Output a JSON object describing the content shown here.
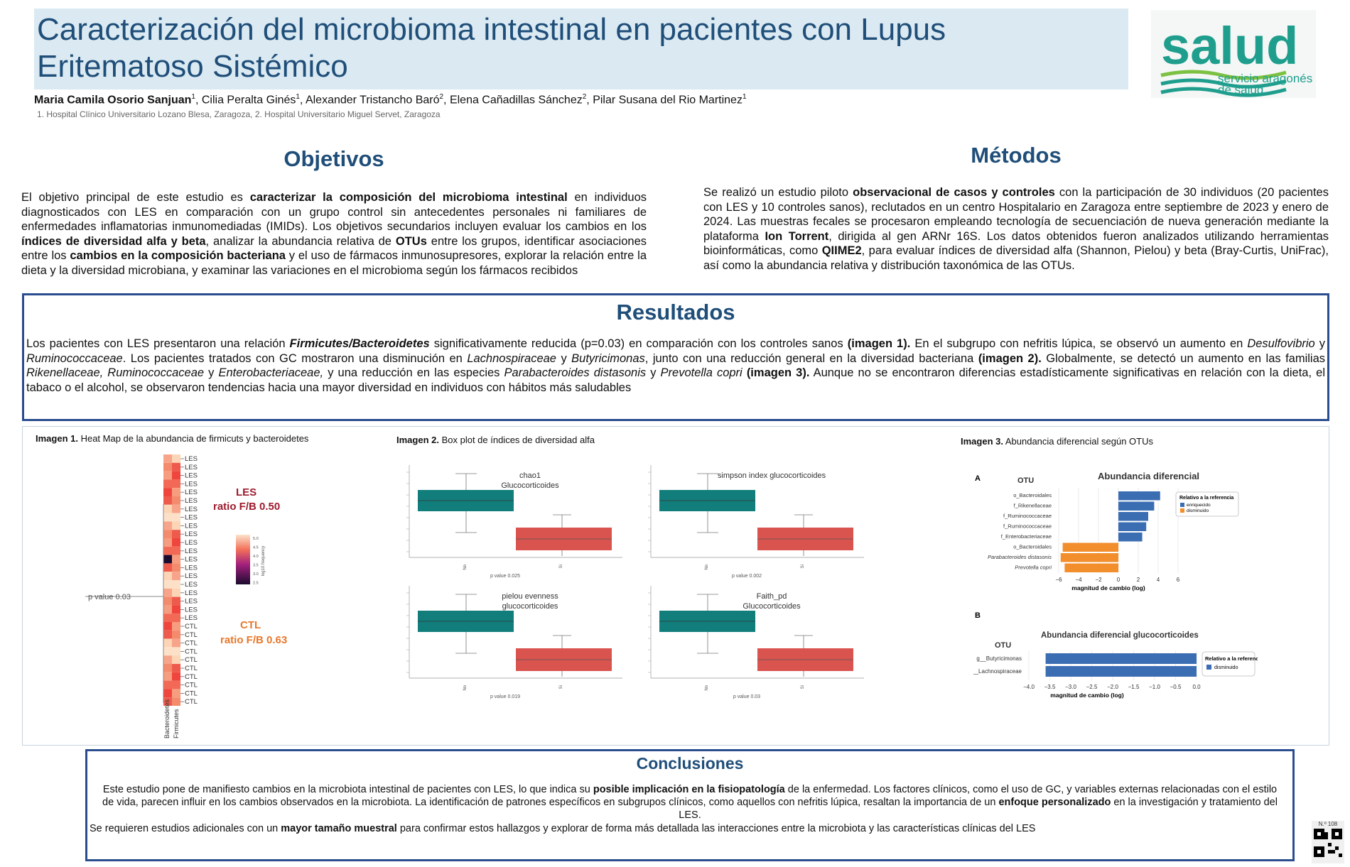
{
  "header": {
    "title_line1": "Caracterización del microbioma intestinal en pacientes con Lupus",
    "title_line2": "Eritematoso Sistémico",
    "authors_html_parts": [
      {
        "name": "Maria Camila Osorio Sanjuan",
        "sup": "1",
        "bold": true
      },
      {
        "name": "Cilia Peralta Ginés",
        "sup": "1"
      },
      {
        "name": "Alexander Tristancho Baró",
        "sup": "2"
      },
      {
        "name": "Elena Cañadillas Sánchez",
        "sup": "2"
      },
      {
        "name": "Pilar Susana del Rio Martinez",
        "sup": "1"
      }
    ],
    "affiliations": "1. Hospital Clínico Universitario Lozano Blesa, Zaragoza, 2. Hospital Universitario Miguel Servet, Zaragoza"
  },
  "logo": {
    "word": "salud",
    "line1": "servicio aragonés",
    "line2": "de salud",
    "colors": {
      "teal": "#1f9e8e",
      "green": "#7cc142"
    }
  },
  "objetivos": {
    "heading": "Objetivos",
    "text_parts": [
      {
        "t": "El objetivo principal de este estudio es "
      },
      {
        "t": "caracterizar la composición del microbioma intestinal",
        "b": true
      },
      {
        "t": " en individuos diagnosticados con LES en comparación con un grupo control sin antecedentes personales ni familiares de enfermedades inflamatorias inmunomediadas (IMIDs). Los objetivos secundarios incluyen evaluar los cambios en los "
      },
      {
        "t": "índices de diversidad alfa y beta",
        "b": true
      },
      {
        "t": ", analizar la abundancia relativa de "
      },
      {
        "t": "OTUs",
        "b": true
      },
      {
        "t": " entre los grupos, identificar asociaciones entre los "
      },
      {
        "t": "cambios en la composición bacteriana",
        "b": true
      },
      {
        "t": " y el uso de fármacos inmunosupresores, explorar la relación entre la dieta y la diversidad microbiana, y examinar las variaciones en el microbioma según los fármacos recibidos"
      }
    ]
  },
  "metodos": {
    "heading": "Métodos",
    "text_parts": [
      {
        "t": "Se realizó un estudio piloto "
      },
      {
        "t": "observacional de casos y controles",
        "b": true
      },
      {
        "t": " con la participación de 30 individuos (20 pacientes con LES y 10 controles sanos), reclutados en un centro Hospitalario en Zaragoza entre septiembre de 2023 y enero de 2024. Las muestras fecales se procesaron empleando tecnología de secuenciación de nueva generación mediante la plataforma "
      },
      {
        "t": "Ion Torrent",
        "b": true
      },
      {
        "t": ", dirigida al gen ARNr 16S. Los datos obtenidos fueron analizados utilizando herramientas bioinformáticas, como "
      },
      {
        "t": "QIIME2",
        "b": true
      },
      {
        "t": ", para evaluar índices de diversidad alfa (Shannon, Pielou) y beta (Bray-Curtis, UniFrac), así como la abundancia relativa y distribución taxonómica de las OTUs."
      }
    ]
  },
  "resultados": {
    "heading": "Resultados",
    "text_parts": [
      {
        "t": "Los pacientes con LES presentaron una relación "
      },
      {
        "t": "Firmicutes/Bacteroidetes",
        "b": true,
        "i": true
      },
      {
        "t": " significativamente reducida (p=0.03) en comparación con los controles sanos "
      },
      {
        "t": "(imagen 1).",
        "b": true
      },
      {
        "t": " En el subgrupo con nefritis lúpica, se observó un aumento en "
      },
      {
        "t": "Desulfovibrio",
        "i": true
      },
      {
        "t": " y "
      },
      {
        "t": "Ruminococcaceae",
        "i": true
      },
      {
        "t": ". Los pacientes tratados con GC mostraron una disminución en "
      },
      {
        "t": "Lachnospiraceae",
        "i": true
      },
      {
        "t": " y "
      },
      {
        "t": "Butyricimonas",
        "i": true
      },
      {
        "t": ", junto con una reducción general en la diversidad bacteriana "
      },
      {
        "t": "(imagen 2).",
        "b": true
      },
      {
        "t": " Globalmente, se detectó un aumento en las familias "
      },
      {
        "t": "Rikenellaceae, Ruminococcaceae",
        "i": true
      },
      {
        "t": " y "
      },
      {
        "t": "Enterobacteriaceae,",
        "i": true
      },
      {
        "t": " y una reducción en las especies "
      },
      {
        "t": "Parabacteroides distasonis",
        "i": true
      },
      {
        "t": " y "
      },
      {
        "t": "Prevotella copri",
        "i": true
      },
      {
        "t": " "
      },
      {
        "t": "(imagen 3).",
        "b": true
      },
      {
        "t": " Aunque no se encontraron diferencias estadísticamente significativas en relación con la dieta, el tabaco o el alcohol, se observaron tendencias hacia una mayor diversidad en individuos con hábitos más saludables"
      }
    ]
  },
  "imagen1": {
    "caption_bold": "Imagen 1.",
    "caption": " Heat Map de la abundancia de firmicuts y bacteroidetes",
    "row_labels": [
      "LES",
      "LES",
      "LES",
      "LES",
      "LES",
      "LES",
      "LES",
      "LES",
      "LES",
      "LES",
      "LES",
      "LES",
      "LES",
      "LES",
      "LES",
      "LES",
      "LES",
      "LES",
      "LES",
      "LES",
      "CTL",
      "CTL",
      "CTL",
      "CTL",
      "CTL",
      "CTL",
      "CTL",
      "CTL",
      "CTL",
      "CTL"
    ],
    "col_labels": [
      "Bacteroidetes",
      "Firmicutes"
    ],
    "les_label": "LES",
    "les_ratio": "ratio F/B 0.50",
    "ctl_label": "CTL",
    "ctl_ratio": "ratio F/B 0.63",
    "pvalue": "p value 0.03",
    "colorbar_label": "log10 frequency",
    "colorbar_ticks": [
      "5.0",
      "4.5",
      "4.0",
      "3.5",
      "3.0",
      "2.5"
    ],
    "colors": {
      "les": "#9d1b2e",
      "ctl": "#e8782b"
    }
  },
  "imagen2": {
    "caption_bold": "Imagen 2.",
    "caption": " Box plot de índices de diversidad alfa",
    "plots": [
      {
        "title1": "chao1",
        "title2": "Glucocorticoides",
        "pvalue": "p value 0.025",
        "xlabels": [
          "No",
          "Si"
        ]
      },
      {
        "title1": "simpson index glucocorticoides",
        "title2": "",
        "pvalue": "p value 0.002",
        "xlabels": [
          "No",
          "Si"
        ]
      },
      {
        "title1": "pielou evenness",
        "title2": "glucocorticoides",
        "pvalue": "p value 0.019",
        "xlabels": [
          "No",
          "Si"
        ]
      },
      {
        "title1": "Faith_pd",
        "title2": "Glucocorticoides",
        "pvalue": "p value 0.03",
        "xlabels": [
          "No",
          "Si"
        ]
      }
    ],
    "colors": {
      "no": "#127e7c",
      "si": "#d9534f"
    }
  },
  "imagen3": {
    "caption_bold": "Imagen 3.",
    "caption": "  Abundancia diferencial según OTUs",
    "panelA": {
      "letter": "A",
      "otu_header": "OTU",
      "title": "Abundancia diferencial",
      "xlabel": "magnitud de cambio (log)",
      "ticks": [
        "−6",
        "−4",
        "−2",
        "0",
        "2",
        "4",
        "6"
      ],
      "legend_title": "Relativo a la referencia",
      "legend_items": [
        "enriquecido",
        "disminuido"
      ],
      "rows": [
        {
          "name": "o_Bacteroidales",
          "value": 4.2
        },
        {
          "name": "f_Rikenellaceae",
          "value": 3.6
        },
        {
          "name": "f_Ruminococcaceae",
          "value": 3.0
        },
        {
          "name": "f_Ruminococcaceae",
          "value": 2.8
        },
        {
          "name": "f_Enterobacteriaceae",
          "value": 2.4
        },
        {
          "name": "o_Bacteroidales",
          "value": -5.6
        },
        {
          "name": "Parabacteroides distasonis",
          "value": -5.8
        },
        {
          "name": "Prevotella copri",
          "value": -5.4
        }
      ]
    },
    "panelB": {
      "letter": "B",
      "otu_header": "OTU",
      "title": "Abundancia diferencial glucocorticoides",
      "xlabel": "magnitud de cambio (log)",
      "ticks": [
        "−4.0",
        "−3.5",
        "−3.0",
        "−2.5",
        "−2.0",
        "−1.5",
        "−1.0",
        "−0.5",
        "0.0"
      ],
      "legend_title": "Relativo a la referencia",
      "legend_items": [
        "disminuido"
      ],
      "rows": [
        {
          "name": "g__Butyricimonas",
          "value": -3.6
        },
        {
          "name": "f__Lachnospiraceae",
          "value": -3.6
        }
      ]
    },
    "colors": {
      "enriquecido": "#3b6db3",
      "disminuido": "#f28e2b"
    }
  },
  "conclusiones": {
    "heading": "Conclusiones",
    "p1_parts": [
      {
        "t": "Este estudio pone de manifiesto cambios en la microbiota intestinal de pacientes con LES, lo que indica su "
      },
      {
        "t": "posible implicación en la fisiopatología",
        "b": true
      },
      {
        "t": " de la enfermedad. Los factores clínicos, como el uso de GC, y variables externas relacionadas con el estilo de vida, parecen influir en los cambios observados en la microbiota. La identificación de patrones específicos en subgrupos clínicos, como aquellos con nefritis lúpica, resaltan la importancia de un "
      },
      {
        "t": "enfoque personalizado",
        "b": true
      },
      {
        "t": " en la investigación y tratamiento del LES."
      }
    ],
    "p2_parts": [
      {
        "t": "Se requieren estudios adicionales con un "
      },
      {
        "t": "mayor tamaño muestral",
        "b": true
      },
      {
        "t": " para confirmar estos hallazgos y explorar de forma más detallada las interacciones entre la microbiota y las características clínicas del LES"
      }
    ]
  },
  "poster_number": "N.º 108"
}
